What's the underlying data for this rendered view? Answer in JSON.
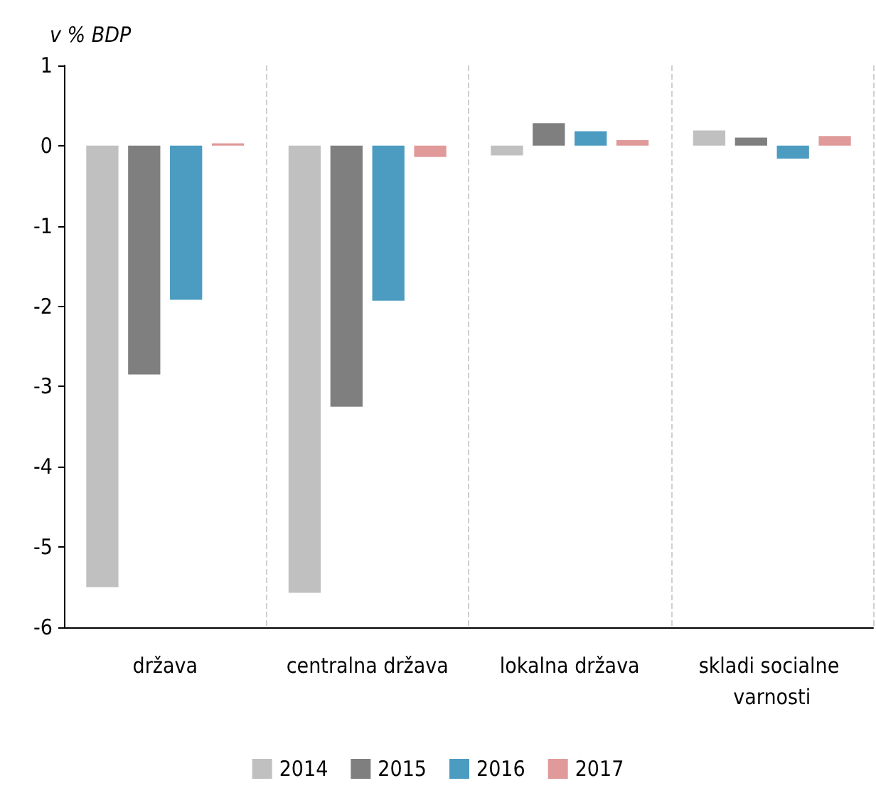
{
  "chart_data": {
    "type": "bar",
    "ylabel": "v % BDP",
    "categories": [
      "država",
      "centralna država",
      "lokalna država",
      "skladi socialne varnosti"
    ],
    "series": [
      {
        "name": "2014",
        "color": "#c0c0c0",
        "values": [
          -5.5,
          -5.57,
          -0.12,
          0.19
        ]
      },
      {
        "name": "2015",
        "color": "#7f7f7f",
        "values": [
          -2.85,
          -3.25,
          0.28,
          0.1
        ]
      },
      {
        "name": "2016",
        "color": "#4b9cc0",
        "values": [
          -1.92,
          -1.93,
          0.18,
          -0.16
        ]
      },
      {
        "name": "2017",
        "color": "#e09a9a",
        "values": [
          0.03,
          -0.14,
          0.07,
          0.12
        ]
      }
    ],
    "ylim": [
      -6,
      1
    ],
    "yticks": [
      1,
      0,
      -1,
      -2,
      -3,
      -4,
      -5,
      -6
    ],
    "grid": "x",
    "legend": "bottom"
  }
}
